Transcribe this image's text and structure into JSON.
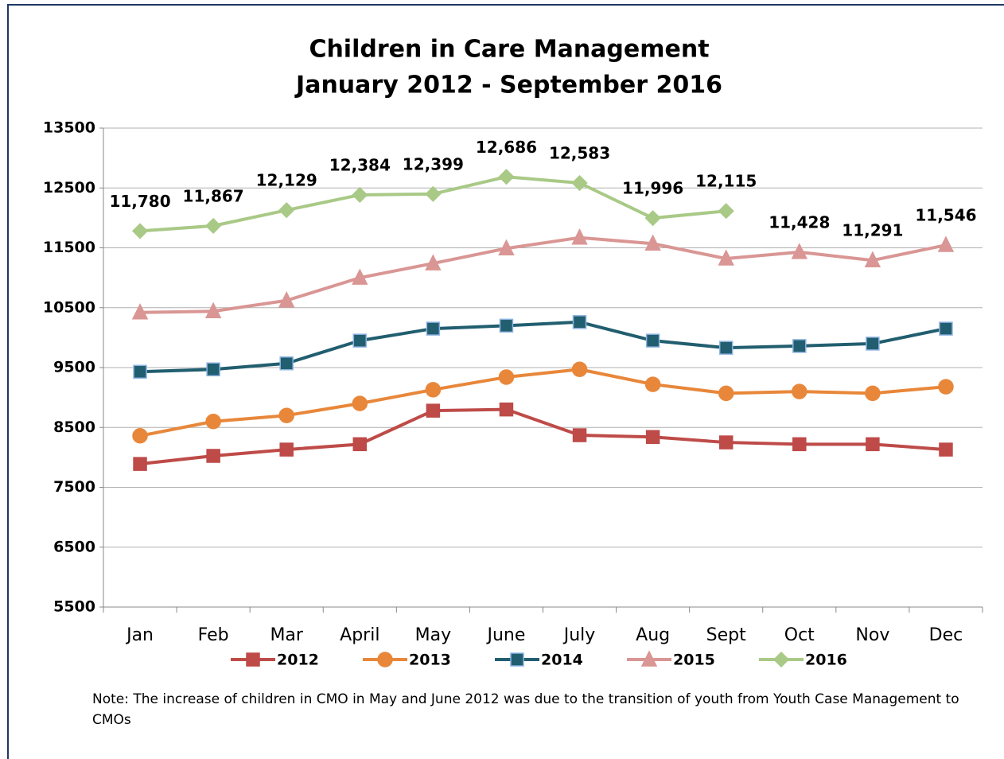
{
  "chart_data": {
    "type": "line",
    "title": "Children in Care Management",
    "subtitle": "January 2012 - September 2016",
    "categories": [
      "Jan",
      "Feb",
      "Mar",
      "April",
      "May",
      "June",
      "July",
      "Aug",
      "Sept",
      "Oct",
      "Nov",
      "Dec"
    ],
    "series": [
      {
        "name": "2012",
        "color": "#be4b48",
        "marker": "square",
        "values": [
          7890,
          8025,
          8130,
          8220,
          8780,
          8800,
          8370,
          8340,
          8250,
          8220,
          8220,
          8130
        ]
      },
      {
        "name": "2013",
        "color": "#e8873a",
        "marker": "circle",
        "values": [
          8360,
          8600,
          8700,
          8900,
          9130,
          9340,
          9470,
          9220,
          9070,
          9100,
          9070,
          9180
        ]
      },
      {
        "name": "2014",
        "color": "#215e6f",
        "marker": "square",
        "values": [
          9430,
          9470,
          9570,
          9950,
          10150,
          10200,
          10260,
          9950,
          9830,
          9860,
          9900,
          10150
        ]
      },
      {
        "name": "2015",
        "color": "#d99694",
        "marker": "triangle",
        "values": [
          10420,
          10440,
          10620,
          11000,
          11240,
          11490,
          11670,
          11570,
          11320,
          11428,
          11291,
          11546
        ],
        "value_labels": [
          null,
          null,
          null,
          null,
          null,
          null,
          null,
          null,
          null,
          "11,428",
          "11,291",
          "11,546"
        ]
      },
      {
        "name": "2016",
        "color": "#a9c986",
        "marker": "diamond",
        "values": [
          11780,
          11867,
          12129,
          12384,
          12399,
          12686,
          12583,
          11996,
          12115,
          null,
          null,
          null
        ],
        "value_labels": [
          "11,780",
          "11,867",
          "12,129",
          "12,384",
          "12,399",
          "12,686",
          "12,583",
          "11,996",
          "12,115",
          null,
          null,
          null
        ]
      }
    ],
    "ylim": [
      5500,
      13500
    ],
    "yticks": [
      5500,
      6500,
      7500,
      8500,
      9500,
      10500,
      11500,
      12500,
      13500
    ],
    "grid": true,
    "legend": "bottom",
    "note": "Note: The increase of children in CMO in May and June 2012 was due to the transition of  youth from Youth Case Management to CMOs"
  }
}
